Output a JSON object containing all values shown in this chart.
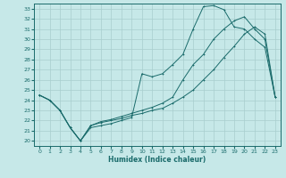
{
  "background_color": "#c6e8e8",
  "grid_color": "#a8cece",
  "line_color": "#1a6b6b",
  "xlabel": "Humidex (Indice chaleur)",
  "xlim": [
    -0.5,
    23.5
  ],
  "ylim": [
    19.5,
    33.5
  ],
  "xticks": [
    0,
    1,
    2,
    3,
    4,
    5,
    6,
    7,
    8,
    9,
    10,
    11,
    12,
    13,
    14,
    15,
    16,
    17,
    18,
    19,
    20,
    21,
    22,
    23
  ],
  "yticks": [
    20,
    21,
    22,
    23,
    24,
    25,
    26,
    27,
    28,
    29,
    30,
    31,
    32,
    33
  ],
  "line1_x": [
    0,
    1,
    2,
    3,
    4,
    5,
    6,
    7,
    8,
    9,
    10,
    11,
    12,
    13,
    14,
    15,
    16,
    17,
    18,
    19,
    20,
    21,
    22,
    23
  ],
  "line1_y": [
    24.5,
    24.0,
    23.0,
    21.3,
    20.0,
    21.3,
    21.5,
    21.7,
    22.0,
    22.3,
    26.6,
    26.3,
    26.6,
    27.5,
    28.5,
    31.0,
    33.2,
    33.3,
    32.9,
    31.2,
    31.0,
    30.0,
    29.2,
    24.3
  ],
  "line2_x": [
    0,
    1,
    2,
    3,
    4,
    5,
    6,
    7,
    8,
    9,
    10,
    11,
    12,
    13,
    14,
    15,
    16,
    17,
    18,
    19,
    20,
    21,
    22,
    23
  ],
  "line2_y": [
    24.5,
    24.0,
    23.0,
    21.3,
    20.0,
    21.5,
    21.9,
    22.1,
    22.4,
    22.7,
    23.0,
    23.3,
    23.7,
    24.3,
    26.0,
    27.5,
    28.5,
    30.0,
    31.0,
    31.8,
    32.2,
    31.0,
    30.0,
    24.3
  ],
  "line3_x": [
    0,
    1,
    2,
    3,
    4,
    5,
    6,
    7,
    8,
    9,
    10,
    11,
    12,
    13,
    14,
    15,
    16,
    17,
    18,
    19,
    20,
    21,
    22,
    23
  ],
  "line3_y": [
    24.5,
    24.0,
    23.0,
    21.3,
    20.0,
    21.5,
    21.8,
    22.0,
    22.2,
    22.5,
    22.7,
    23.0,
    23.2,
    23.7,
    24.3,
    25.0,
    26.0,
    27.0,
    28.2,
    29.3,
    30.5,
    31.2,
    30.5,
    24.3
  ]
}
